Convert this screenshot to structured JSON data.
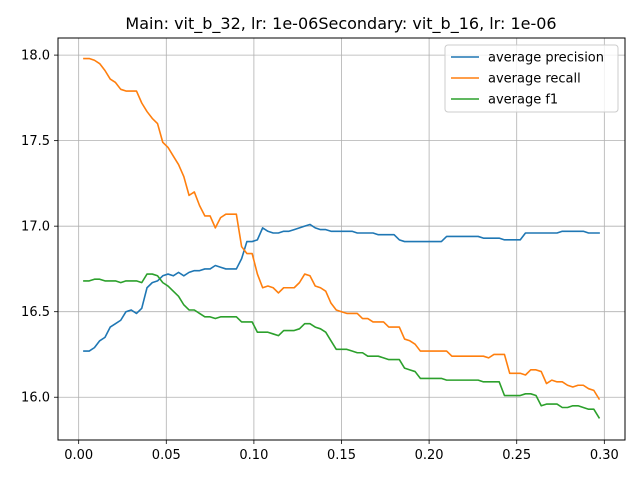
{
  "chart_data": {
    "type": "line",
    "title": "Main: vit_b_32, lr: 1e-06Secondary: vit_b_16, lr: 1e-06",
    "xlabel": "",
    "ylabel": "",
    "xlim": [
      -0.0118,
      0.3118
    ],
    "ylim": [
      15.75,
      18.1
    ],
    "xticks": [
      0.0,
      0.05,
      0.1,
      0.15,
      0.2,
      0.25,
      0.3
    ],
    "xtick_labels": [
      "0.00",
      "0.05",
      "0.10",
      "0.15",
      "0.20",
      "0.25",
      "0.30"
    ],
    "yticks": [
      16.0,
      16.5,
      17.0,
      17.5,
      18.0
    ],
    "ytick_labels": [
      "16.0",
      "16.5",
      "17.0",
      "17.5",
      "18.0"
    ],
    "grid": true,
    "legend_position": "top-right",
    "x": [
      0.003,
      0.006,
      0.009,
      0.012,
      0.015,
      0.018,
      0.021,
      0.024,
      0.027,
      0.03,
      0.033,
      0.036,
      0.039,
      0.042,
      0.045,
      0.048,
      0.051,
      0.054,
      0.057,
      0.06,
      0.063,
      0.066,
      0.069,
      0.072,
      0.075,
      0.078,
      0.081,
      0.084,
      0.087,
      0.09,
      0.093,
      0.096,
      0.099,
      0.102,
      0.105,
      0.108,
      0.111,
      0.114,
      0.117,
      0.12,
      0.123,
      0.126,
      0.129,
      0.132,
      0.135,
      0.138,
      0.141,
      0.144,
      0.147,
      0.15,
      0.153,
      0.156,
      0.159,
      0.162,
      0.165,
      0.168,
      0.171,
      0.174,
      0.177,
      0.18,
      0.183,
      0.186,
      0.189,
      0.192,
      0.195,
      0.198,
      0.201,
      0.204,
      0.207,
      0.21,
      0.213,
      0.216,
      0.219,
      0.222,
      0.225,
      0.228,
      0.231,
      0.234,
      0.237,
      0.24,
      0.243,
      0.246,
      0.249,
      0.252,
      0.255,
      0.258,
      0.261,
      0.264,
      0.267,
      0.27,
      0.273,
      0.276,
      0.279,
      0.282,
      0.285,
      0.288,
      0.291,
      0.294,
      0.297
    ],
    "series": [
      {
        "name": "average precision",
        "color": "#1f77b4",
        "values": [
          16.27,
          16.27,
          16.29,
          16.33,
          16.35,
          16.41,
          16.43,
          16.45,
          16.5,
          16.51,
          16.49,
          16.52,
          16.64,
          16.67,
          16.68,
          16.71,
          16.72,
          16.71,
          16.73,
          16.71,
          16.73,
          16.74,
          16.74,
          16.75,
          16.75,
          16.77,
          16.76,
          16.75,
          16.75,
          16.75,
          16.81,
          16.91,
          16.91,
          16.92,
          16.99,
          16.97,
          16.96,
          16.96,
          16.97,
          16.97,
          16.98,
          16.99,
          17.0,
          17.01,
          16.99,
          16.98,
          16.98,
          16.97,
          16.97,
          16.97,
          16.97,
          16.97,
          16.96,
          16.96,
          16.96,
          16.96,
          16.95,
          16.95,
          16.95,
          16.95,
          16.92,
          16.91,
          16.91,
          16.91,
          16.91,
          16.91,
          16.91,
          16.91,
          16.91,
          16.94,
          16.94,
          16.94,
          16.94,
          16.94,
          16.94,
          16.94,
          16.93,
          16.93,
          16.93,
          16.93,
          16.92,
          16.92,
          16.92,
          16.92,
          16.96,
          16.96,
          16.96,
          16.96,
          16.96,
          16.96,
          16.96,
          16.97,
          16.97,
          16.97,
          16.97,
          16.97,
          16.96,
          16.96,
          16.96
        ]
      },
      {
        "name": "average recall",
        "color": "#ff7f0e",
        "values": [
          17.98,
          17.98,
          17.97,
          17.95,
          17.91,
          17.86,
          17.84,
          17.8,
          17.79,
          17.79,
          17.79,
          17.72,
          17.67,
          17.63,
          17.6,
          17.49,
          17.46,
          17.41,
          17.36,
          17.29,
          17.18,
          17.2,
          17.12,
          17.06,
          17.06,
          16.99,
          17.05,
          17.07,
          17.07,
          17.07,
          16.88,
          16.84,
          16.84,
          16.72,
          16.64,
          16.65,
          16.64,
          16.61,
          16.64,
          16.64,
          16.64,
          16.67,
          16.72,
          16.71,
          16.65,
          16.64,
          16.62,
          16.55,
          16.51,
          16.5,
          16.49,
          16.49,
          16.49,
          16.46,
          16.46,
          16.44,
          16.44,
          16.44,
          16.41,
          16.41,
          16.41,
          16.34,
          16.33,
          16.31,
          16.27,
          16.27,
          16.27,
          16.27,
          16.27,
          16.27,
          16.24,
          16.24,
          16.24,
          16.24,
          16.24,
          16.24,
          16.24,
          16.23,
          16.25,
          16.25,
          16.25,
          16.14,
          16.14,
          16.14,
          16.13,
          16.16,
          16.16,
          16.15,
          16.08,
          16.1,
          16.09,
          16.09,
          16.07,
          16.06,
          16.07,
          16.07,
          16.05,
          16.04,
          15.99
        ]
      },
      {
        "name": "average f1",
        "color": "#2ca02c",
        "values": [
          16.68,
          16.68,
          16.69,
          16.69,
          16.68,
          16.68,
          16.68,
          16.67,
          16.68,
          16.68,
          16.68,
          16.67,
          16.72,
          16.72,
          16.71,
          16.67,
          16.65,
          16.62,
          16.59,
          16.54,
          16.51,
          16.51,
          16.49,
          16.47,
          16.47,
          16.46,
          16.47,
          16.47,
          16.47,
          16.47,
          16.44,
          16.44,
          16.44,
          16.38,
          16.38,
          16.38,
          16.37,
          16.36,
          16.39,
          16.39,
          16.39,
          16.4,
          16.43,
          16.43,
          16.41,
          16.4,
          16.38,
          16.33,
          16.28,
          16.28,
          16.28,
          16.27,
          16.26,
          16.26,
          16.24,
          16.24,
          16.24,
          16.23,
          16.22,
          16.22,
          16.22,
          16.17,
          16.16,
          16.15,
          16.11,
          16.11,
          16.11,
          16.11,
          16.11,
          16.1,
          16.1,
          16.1,
          16.1,
          16.1,
          16.1,
          16.1,
          16.09,
          16.09,
          16.09,
          16.09,
          16.01,
          16.01,
          16.01,
          16.01,
          16.02,
          16.02,
          16.01,
          15.95,
          15.96,
          15.96,
          15.96,
          15.94,
          15.94,
          15.95,
          15.95,
          15.94,
          15.93,
          15.93,
          15.88
        ]
      }
    ]
  }
}
